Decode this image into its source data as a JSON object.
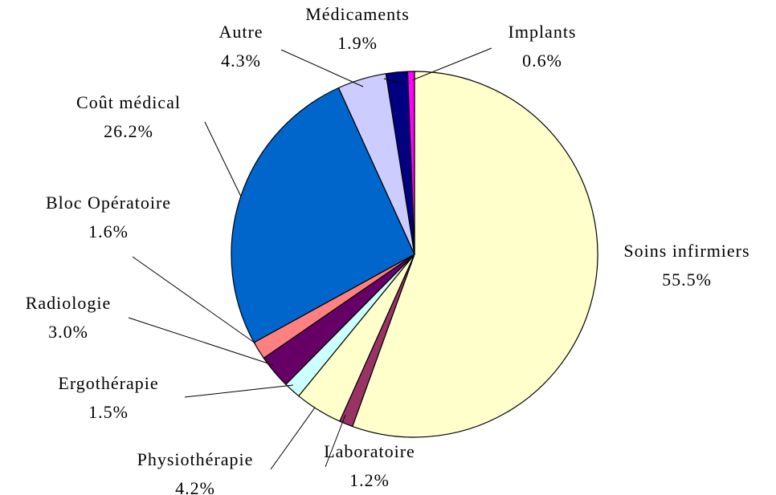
{
  "chart_data": {
    "type": "pie",
    "categories": [
      "Soins infirmiers",
      "Laboratoire",
      "Physiothérapie",
      "Ergothérapie",
      "Radiologie",
      "Bloc Opératoire",
      "Coût médical",
      "Autre",
      "Médicaments",
      "Implants"
    ],
    "values": [
      55.5,
      1.2,
      4.2,
      1.5,
      3.0,
      1.6,
      26.2,
      4.3,
      1.9,
      0.6
    ],
    "value_labels": [
      "55.5%",
      "1.2%",
      "4.2%",
      "1.5%",
      "3.0%",
      "1.6%",
      "26.2%",
      "4.3%",
      "1.9%",
      "0.6%"
    ],
    "colors": [
      "#FFFFCC",
      "#993366",
      "#FFFFCC",
      "#CCFFFF",
      "#660066",
      "#FF8080",
      "#0066CC",
      "#CCCCFF",
      "#000080",
      "#FF00FF"
    ]
  }
}
